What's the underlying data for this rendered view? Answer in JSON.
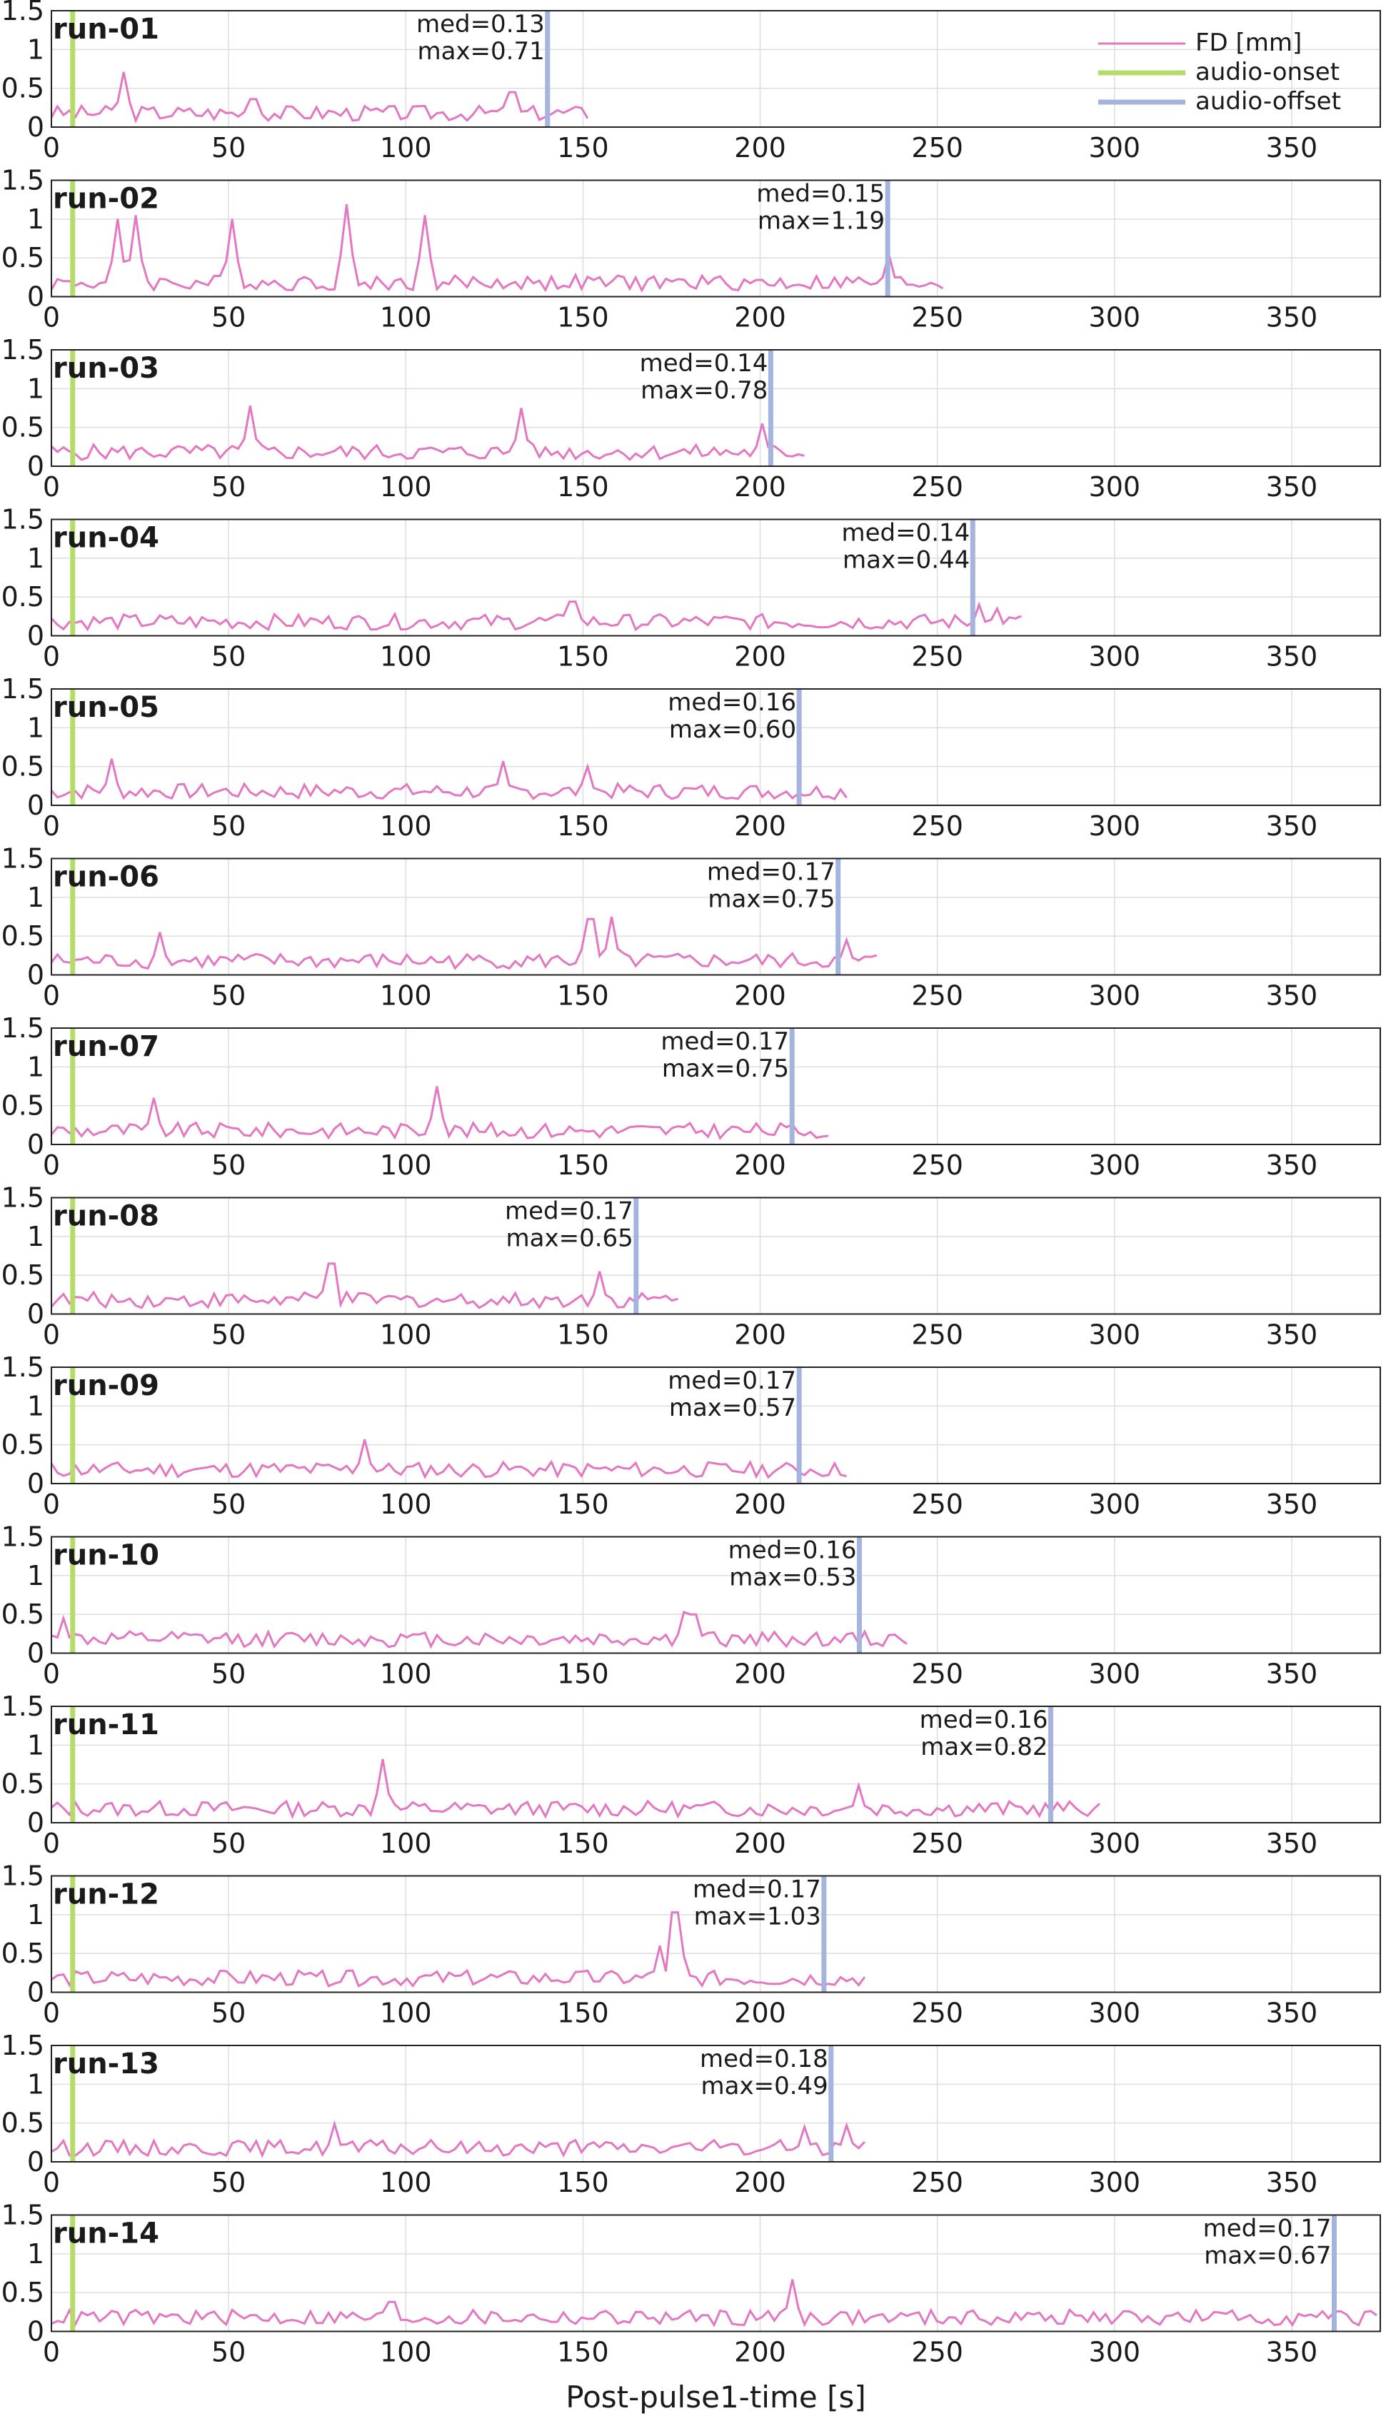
{
  "chart_data": {
    "type": "line",
    "xlabel": "Post-pulse1-time [s]",
    "ylabel": "",
    "xlim": [
      0,
      375
    ],
    "ylim": [
      0,
      1.5
    ],
    "xticks": [
      0,
      50,
      100,
      150,
      200,
      250,
      300,
      350
    ],
    "yticks": [
      0,
      0.5,
      1,
      1.5
    ],
    "ytick_labels": [
      "0",
      "0.5",
      "1",
      "1.5"
    ],
    "grid": true,
    "legend": {
      "placement": "top-right",
      "entries": [
        {
          "name": "FD [mm]",
          "color": "#e377c2"
        },
        {
          "name": "audio-onset",
          "color": "#b5dc6b"
        },
        {
          "name": "audio-offset",
          "color": "#a4b4de"
        }
      ]
    },
    "colors": {
      "fd": "#e377c2",
      "onset": "#b5dc6b",
      "offset": "#a4b4de",
      "grid": "#dddddd"
    },
    "audio_onset": 6,
    "runs": [
      {
        "label": "run-01",
        "med": "med=0.13",
        "max": "max=0.71",
        "offset": 140,
        "duration": 152,
        "peaks": [
          [
            21,
            0.71
          ],
          [
            57,
            0.36
          ],
          [
            130,
            0.45
          ]
        ]
      },
      {
        "label": "run-02",
        "med": "med=0.15",
        "max": "max=1.19",
        "offset": 236,
        "duration": 253,
        "peaks": [
          [
            18,
            1.0
          ],
          [
            24,
            1.05
          ],
          [
            51,
            1.0
          ],
          [
            83,
            1.19
          ],
          [
            106,
            1.05
          ],
          [
            236,
            0.55
          ]
        ]
      },
      {
        "label": "run-03",
        "med": "med=0.14",
        "max": "max=0.78",
        "offset": 203,
        "duration": 213,
        "peaks": [
          [
            56,
            0.78
          ],
          [
            133,
            0.75
          ],
          [
            201,
            0.55
          ]
        ]
      },
      {
        "label": "run-04",
        "med": "med=0.14",
        "max": "max=0.44",
        "offset": 260,
        "duration": 275,
        "peaks": [
          [
            147,
            0.44
          ],
          [
            262,
            0.4
          ],
          [
            267,
            0.35
          ]
        ]
      },
      {
        "label": "run-05",
        "med": "med=0.16",
        "max": "max=0.60",
        "offset": 211,
        "duration": 225,
        "peaks": [
          [
            17,
            0.6
          ],
          [
            128,
            0.57
          ],
          [
            151,
            0.5
          ]
        ]
      },
      {
        "label": "run-06",
        "med": "med=0.17",
        "max": "max=0.75",
        "offset": 222,
        "duration": 234,
        "peaks": [
          [
            31,
            0.55
          ],
          [
            152,
            0.72
          ],
          [
            158,
            0.75
          ],
          [
            225,
            0.45
          ]
        ]
      },
      {
        "label": "run-07",
        "med": "med=0.17",
        "max": "max=0.75",
        "offset": 209,
        "duration": 220,
        "peaks": [
          [
            29,
            0.6
          ],
          [
            109,
            0.75
          ]
        ]
      },
      {
        "label": "run-08",
        "med": "med=0.17",
        "max": "max=0.65",
        "offset": 165,
        "duration": 178,
        "peaks": [
          [
            79,
            0.65
          ],
          [
            154,
            0.55
          ]
        ]
      },
      {
        "label": "run-09",
        "med": "med=0.17",
        "max": "max=0.57",
        "offset": 211,
        "duration": 226,
        "peaks": [
          [
            88,
            0.57
          ]
        ]
      },
      {
        "label": "run-10",
        "med": "med=0.16",
        "max": "max=0.53",
        "offset": 228,
        "duration": 242,
        "peaks": [
          [
            4,
            0.45
          ],
          [
            178,
            0.53
          ],
          [
            181,
            0.5
          ]
        ]
      },
      {
        "label": "run-11",
        "med": "med=0.16",
        "max": "max=0.82",
        "offset": 282,
        "duration": 296,
        "peaks": [
          [
            94,
            0.82
          ],
          [
            228,
            0.48
          ]
        ]
      },
      {
        "label": "run-12",
        "med": "med=0.17",
        "max": "max=1.03",
        "offset": 218,
        "duration": 231,
        "peaks": [
          [
            176,
            1.03
          ],
          [
            171,
            0.6
          ]
        ]
      },
      {
        "label": "run-13",
        "med": "med=0.18",
        "max": "max=0.49",
        "offset": 220,
        "duration": 231,
        "peaks": [
          [
            80,
            0.49
          ],
          [
            212,
            0.45
          ],
          [
            224,
            0.47
          ]
        ]
      },
      {
        "label": "run-14",
        "med": "med=0.17",
        "max": "max=0.67",
        "offset": 362,
        "duration": 375,
        "peaks": [
          [
            209,
            0.67
          ],
          [
            96,
            0.38
          ]
        ]
      }
    ]
  }
}
